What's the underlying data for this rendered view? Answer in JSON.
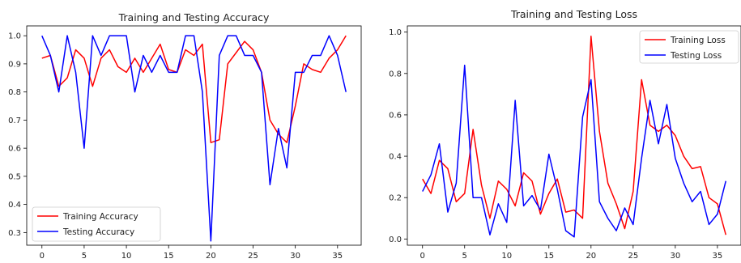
{
  "chart_data": [
    {
      "type": "line",
      "title": "Training and Testing Accuracy",
      "xlabel": "",
      "ylabel": "",
      "xlim": [
        -1.8,
        37.8
      ],
      "ylim": [
        0.255,
        1.035
      ],
      "xticks": [
        0,
        5,
        10,
        15,
        20,
        25,
        30,
        35
      ],
      "yticks": [
        0.3,
        0.4,
        0.5,
        0.6,
        0.7,
        0.8,
        0.9,
        1.0
      ],
      "ytick_labels": [
        "0.3",
        "0.4",
        "0.5",
        "0.6",
        "0.7",
        "0.8",
        "0.9",
        "1.0"
      ],
      "grid": false,
      "legend": "lower-left",
      "x": [
        0,
        1,
        2,
        3,
        4,
        5,
        6,
        7,
        8,
        9,
        10,
        11,
        12,
        13,
        14,
        15,
        16,
        17,
        18,
        19,
        20,
        21,
        22,
        23,
        24,
        25,
        26,
        27,
        28,
        29,
        30,
        31,
        32,
        33,
        34,
        35,
        36
      ],
      "series": [
        {
          "name": "Training Accuracy",
          "color": "#ff0000",
          "values": [
            0.92,
            0.93,
            0.82,
            0.85,
            0.95,
            0.92,
            0.82,
            0.92,
            0.95,
            0.89,
            0.87,
            0.92,
            0.87,
            0.92,
            0.97,
            0.88,
            0.87,
            0.95,
            0.93,
            0.97,
            0.62,
            0.63,
            0.9,
            0.94,
            0.98,
            0.95,
            0.87,
            0.7,
            0.65,
            0.62,
            0.75,
            0.9,
            0.88,
            0.87,
            0.92,
            0.95,
            1.0
          ]
        },
        {
          "name": "Testing Accuracy",
          "color": "#0000ff",
          "values": [
            1.0,
            0.93,
            0.8,
            1.0,
            0.87,
            0.6,
            1.0,
            0.93,
            1.0,
            1.0,
            1.0,
            0.8,
            0.93,
            0.87,
            0.93,
            0.87,
            0.87,
            1.0,
            1.0,
            0.8,
            0.27,
            0.93,
            1.0,
            1.0,
            0.93,
            0.93,
            0.87,
            0.47,
            0.67,
            0.53,
            0.87,
            0.87,
            0.93,
            0.93,
            1.0,
            0.93,
            0.8
          ]
        }
      ]
    },
    {
      "type": "line",
      "title": "Training and Testing Loss",
      "xlabel": "",
      "ylabel": "",
      "xlim": [
        -1.8,
        37.8
      ],
      "ylim": [
        -0.03,
        1.03
      ],
      "xticks": [
        0,
        5,
        10,
        15,
        20,
        25,
        30,
        35
      ],
      "yticks": [
        0.0,
        0.2,
        0.4,
        0.6,
        0.8,
        1.0
      ],
      "ytick_labels": [
        "0.0",
        "0.2",
        "0.4",
        "0.6",
        "0.8",
        "1.0"
      ],
      "grid": false,
      "legend": "upper-right",
      "x": [
        0,
        1,
        2,
        3,
        4,
        5,
        6,
        7,
        8,
        9,
        10,
        11,
        12,
        13,
        14,
        15,
        16,
        17,
        18,
        19,
        20,
        21,
        22,
        23,
        24,
        25,
        26,
        27,
        28,
        29,
        30,
        31,
        32,
        33,
        34,
        35,
        36
      ],
      "series": [
        {
          "name": "Training Loss",
          "color": "#ff0000",
          "values": [
            0.29,
            0.22,
            0.38,
            0.34,
            0.18,
            0.22,
            0.53,
            0.26,
            0.1,
            0.28,
            0.24,
            0.16,
            0.32,
            0.28,
            0.12,
            0.22,
            0.29,
            0.13,
            0.14,
            0.1,
            0.98,
            0.52,
            0.27,
            0.17,
            0.05,
            0.23,
            0.77,
            0.55,
            0.52,
            0.55,
            0.5,
            0.4,
            0.34,
            0.35,
            0.2,
            0.17,
            0.02
          ]
        },
        {
          "name": "Testing Loss",
          "color": "#0000ff",
          "values": [
            0.23,
            0.31,
            0.46,
            0.13,
            0.27,
            0.84,
            0.2,
            0.2,
            0.02,
            0.17,
            0.08,
            0.67,
            0.16,
            0.21,
            0.14,
            0.41,
            0.24,
            0.04,
            0.01,
            0.59,
            0.77,
            0.18,
            0.1,
            0.04,
            0.15,
            0.07,
            0.39,
            0.67,
            0.46,
            0.65,
            0.39,
            0.27,
            0.18,
            0.23,
            0.07,
            0.12,
            0.28
          ]
        }
      ]
    }
  ]
}
